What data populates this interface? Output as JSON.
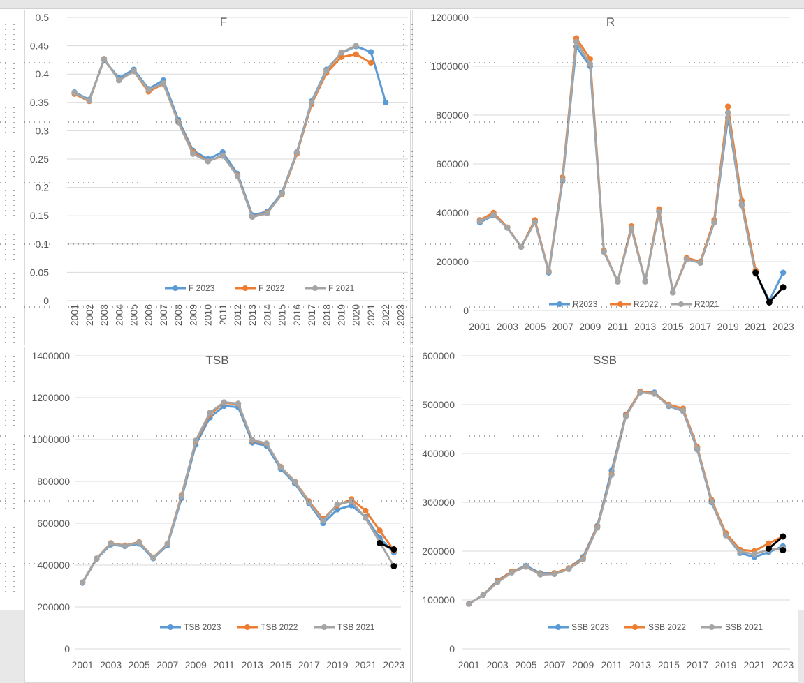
{
  "chart_data": [
    {
      "type": "line",
      "title": "F",
      "xlabel": "",
      "ylabel": "",
      "x": [
        "2001",
        "2002",
        "2003",
        "2004",
        "2005",
        "2006",
        "2007",
        "2008",
        "2009",
        "2010",
        "2011",
        "2012",
        "2013",
        "2014",
        "2015",
        "2016",
        "2017",
        "2018",
        "2019",
        "2020",
        "2021",
        "2022",
        "2023"
      ],
      "ylim": [
        0,
        0.5
      ],
      "yticks": [
        "0",
        "0.05",
        "0.1",
        "0.15",
        "0.2",
        "0.25",
        "0.3",
        "0.35",
        "0.4",
        "0.45",
        "0.5"
      ],
      "xtick_labels": [
        "2001",
        "2002",
        "2003",
        "2004",
        "2005",
        "2006",
        "2007",
        "2008",
        "2009",
        "2010",
        "2011",
        "2012",
        "2013",
        "2014",
        "2015",
        "2016",
        "2017",
        "2018",
        "2019",
        "2020",
        "2021",
        "2022",
        "2023"
      ],
      "grid": true,
      "legend_position": "bottom-right",
      "series": [
        {
          "name": "F 2023",
          "color": "#5b9bd5",
          "values": [
            0.368,
            0.355,
            0.425,
            0.393,
            0.408,
            0.374,
            0.389,
            0.32,
            0.265,
            0.25,
            0.262,
            0.224,
            0.151,
            0.157,
            0.191,
            0.262,
            0.352,
            0.408,
            0.437,
            0.449,
            0.439,
            0.35,
            null
          ]
        },
        {
          "name": "F 2022",
          "color": "#ed7d31",
          "values": [
            0.365,
            0.352,
            0.427,
            0.389,
            0.405,
            0.369,
            0.383,
            0.316,
            0.262,
            0.246,
            0.256,
            0.221,
            0.148,
            0.155,
            0.188,
            0.259,
            0.347,
            0.402,
            0.43,
            0.435,
            0.42,
            null,
            null
          ]
        },
        {
          "name": "F 2021",
          "color": "#a5a5a5",
          "values": [
            0.367,
            0.353,
            0.427,
            0.389,
            0.405,
            0.372,
            0.384,
            0.315,
            0.259,
            0.246,
            0.256,
            0.22,
            0.148,
            0.154,
            0.189,
            0.261,
            0.35,
            0.406,
            0.438,
            0.45,
            null,
            null,
            null
          ]
        }
      ]
    },
    {
      "type": "line",
      "title": "R",
      "xlabel": "",
      "ylabel": "",
      "x": [
        "2001",
        "2002",
        "2003",
        "2004",
        "2005",
        "2006",
        "2007",
        "2008",
        "2009",
        "2010",
        "2011",
        "2012",
        "2013",
        "2014",
        "2015",
        "2016",
        "2017",
        "2018",
        "2019",
        "2020",
        "2021",
        "2022",
        "2023"
      ],
      "ylim": [
        0,
        1200000
      ],
      "yticks": [
        "0",
        "200000",
        "400000",
        "600000",
        "800000",
        "1000000",
        "1200000"
      ],
      "xtick_labels": [
        "2001",
        "2003",
        "2005",
        "2007",
        "2009",
        "2011",
        "2013",
        "2015",
        "2017",
        "2019",
        "2021",
        "2023"
      ],
      "grid": true,
      "legend_position": "bottom",
      "series": [
        {
          "name": "R2023",
          "color": "#5b9bd5",
          "values": [
            360000,
            390000,
            340000,
            260000,
            365000,
            155000,
            530000,
            1080000,
            1000000,
            240000,
            120000,
            340000,
            120000,
            405000,
            75000,
            210000,
            195000,
            360000,
            790000,
            435000,
            155000,
            40000,
            155000
          ]
        },
        {
          "name": "R2022",
          "color": "#ed7d31",
          "values": [
            370000,
            400000,
            340000,
            260000,
            370000,
            160000,
            545000,
            1115000,
            1030000,
            245000,
            118000,
            345000,
            118000,
            415000,
            73000,
            215000,
            200000,
            370000,
            835000,
            450000,
            165000,
            null,
            null
          ]
        },
        {
          "name": "R2021",
          "color": "#a5a5a5",
          "values": [
            365000,
            392000,
            338000,
            260000,
            362000,
            158000,
            535000,
            1100000,
            1010000,
            240000,
            118000,
            336000,
            118000,
            403000,
            73000,
            210000,
            195000,
            360000,
            810000,
            430000,
            150000,
            null,
            null
          ]
        },
        {
          "name": "",
          "color": "#000000",
          "values": [
            null,
            null,
            null,
            null,
            null,
            null,
            null,
            null,
            null,
            null,
            null,
            null,
            null,
            null,
            null,
            null,
            null,
            null,
            null,
            null,
            155000,
            33000,
            95000
          ]
        }
      ]
    },
    {
      "type": "line",
      "title": "TSB",
      "xlabel": "",
      "ylabel": "",
      "x": [
        "2001",
        "2002",
        "2003",
        "2004",
        "2005",
        "2006",
        "2007",
        "2008",
        "2009",
        "2010",
        "2011",
        "2012",
        "2013",
        "2014",
        "2015",
        "2016",
        "2017",
        "2018",
        "2019",
        "2020",
        "2021",
        "2022",
        "2023"
      ],
      "ylim": [
        0,
        1400000
      ],
      "yticks": [
        "0",
        "200000",
        "400000",
        "600000",
        "800000",
        "1000000",
        "1200000",
        "1400000"
      ],
      "xtick_labels": [
        "2001",
        "2003",
        "2005",
        "2007",
        "2009",
        "2011",
        "2013",
        "2015",
        "2017",
        "2019",
        "2021",
        "2023"
      ],
      "grid": true,
      "legend_position": "bottom",
      "series": [
        {
          "name": "TSB 2023",
          "color": "#5b9bd5",
          "values": [
            315000,
            430000,
            498000,
            490000,
            502000,
            432000,
            495000,
            720000,
            975000,
            1105000,
            1160000,
            1155000,
            985000,
            970000,
            860000,
            790000,
            695000,
            600000,
            665000,
            685000,
            630000,
            530000,
            460000
          ]
        },
        {
          "name": "TSB 2022",
          "color": "#ed7d31",
          "values": [
            318000,
            432000,
            505000,
            494000,
            510000,
            437000,
            502000,
            735000,
            990000,
            1120000,
            1175000,
            1170000,
            995000,
            980000,
            870000,
            800000,
            705000,
            620000,
            685000,
            715000,
            660000,
            565000,
            470000
          ]
        },
        {
          "name": "TSB 2021",
          "color": "#a5a5a5",
          "values": [
            318000,
            432000,
            503000,
            492000,
            508000,
            435000,
            500000,
            730000,
            995000,
            1128000,
            1178000,
            1172000,
            998000,
            982000,
            868000,
            798000,
            700000,
            612000,
            690000,
            705000,
            625000,
            510000,
            395000
          ]
        },
        {
          "name": "",
          "color": "#000000",
          "values": [
            null,
            null,
            null,
            null,
            null,
            null,
            null,
            null,
            null,
            null,
            null,
            null,
            null,
            null,
            null,
            null,
            null,
            null,
            null,
            null,
            null,
            505000,
            475000
          ]
        },
        {
          "name": "",
          "color": "#000000",
          "values": [
            null,
            null,
            null,
            null,
            null,
            null,
            null,
            null,
            null,
            null,
            null,
            null,
            null,
            null,
            null,
            null,
            null,
            null,
            null,
            null,
            null,
            null,
            395000
          ]
        }
      ]
    },
    {
      "type": "line",
      "title": "SSB",
      "xlabel": "",
      "ylabel": "",
      "x": [
        "2001",
        "2002",
        "2003",
        "2004",
        "2005",
        "2006",
        "2007",
        "2008",
        "2009",
        "2010",
        "2011",
        "2012",
        "2013",
        "2014",
        "2015",
        "2016",
        "2017",
        "2018",
        "2019",
        "2020",
        "2021",
        "2022",
        "2023"
      ],
      "ylim": [
        0,
        600000
      ],
      "yticks": [
        "0",
        "100000",
        "200000",
        "300000",
        "400000",
        "500000",
        "600000"
      ],
      "xtick_labels": [
        "2001",
        "2003",
        "2005",
        "2007",
        "2009",
        "2011",
        "2013",
        "2015",
        "2017",
        "2019",
        "2021",
        "2023"
      ],
      "grid": true,
      "legend_position": "bottom",
      "series": [
        {
          "name": "SSB 2023",
          "color": "#5b9bd5",
          "values": [
            92000,
            110000,
            140000,
            158000,
            170000,
            155000,
            155000,
            165000,
            188000,
            252000,
            365000,
            480000,
            525000,
            525000,
            497000,
            487000,
            408000,
            300000,
            233000,
            196000,
            188000,
            198000,
            210000
          ]
        },
        {
          "name": "SSB 2022",
          "color": "#ed7d31",
          "values": [
            92000,
            110000,
            138000,
            158000,
            168000,
            153000,
            155000,
            165000,
            185000,
            250000,
            358000,
            478000,
            527000,
            523000,
            500000,
            492000,
            413000,
            305000,
            237000,
            203000,
            200000,
            216000,
            230000
          ]
        },
        {
          "name": "SSB 2021",
          "color": "#a5a5a5",
          "values": [
            92000,
            110000,
            136000,
            156000,
            168000,
            152000,
            153000,
            163000,
            183000,
            248000,
            356000,
            476000,
            525000,
            522000,
            498000,
            488000,
            410000,
            302000,
            232000,
            199000,
            194000,
            203000,
            205000
          ]
        },
        {
          "name": "",
          "color": "#000000",
          "values": [
            null,
            null,
            null,
            null,
            null,
            null,
            null,
            null,
            null,
            null,
            null,
            null,
            null,
            null,
            null,
            null,
            null,
            null,
            null,
            null,
            null,
            205000,
            230000
          ]
        },
        {
          "name": "",
          "color": "#000000",
          "values": [
            null,
            null,
            null,
            null,
            null,
            null,
            null,
            null,
            null,
            null,
            null,
            null,
            null,
            null,
            null,
            null,
            null,
            null,
            null,
            null,
            null,
            null,
            202000
          ]
        }
      ]
    }
  ]
}
